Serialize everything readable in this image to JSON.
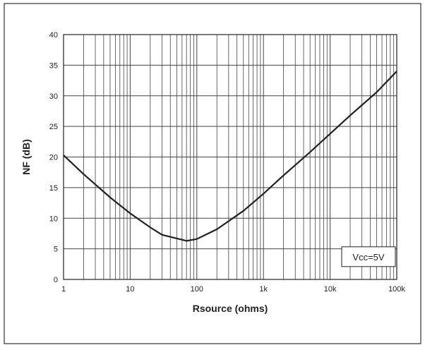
{
  "chart_data": {
    "type": "line",
    "title": "",
    "xlabel": "Rsource (ohms)",
    "ylabel": "NF (dB)",
    "x_scale": "log",
    "xlim": [
      1,
      100000
    ],
    "ylim": [
      0,
      40
    ],
    "grid": true,
    "x_tick_labels": [
      {
        "value": 1,
        "label": "1"
      },
      {
        "value": 10,
        "label": "10"
      },
      {
        "value": 100,
        "label": "100"
      },
      {
        "value": 1000,
        "label": "1k"
      },
      {
        "value": 10000,
        "label": "10k"
      },
      {
        "value": 100000,
        "label": "100k"
      }
    ],
    "y_tick_labels": [
      {
        "value": 0,
        "label": "0"
      },
      {
        "value": 5,
        "label": "5"
      },
      {
        "value": 10,
        "label": "10"
      },
      {
        "value": 15,
        "label": "15"
      },
      {
        "value": 20,
        "label": "20"
      },
      {
        "value": 25,
        "label": "25"
      },
      {
        "value": 30,
        "label": "30"
      },
      {
        "value": 35,
        "label": "35"
      },
      {
        "value": 40,
        "label": "40"
      }
    ],
    "series": [
      {
        "x": [
          1,
          2,
          5,
          10,
          20,
          30,
          50,
          70,
          100,
          200,
          500,
          1000,
          2000,
          5000,
          10000,
          20000,
          50000,
          100000
        ],
        "y": [
          20.3,
          17.2,
          13.4,
          10.8,
          8.5,
          7.3,
          6.7,
          6.3,
          6.6,
          8.2,
          11.2,
          14.0,
          17.0,
          20.8,
          23.8,
          26.8,
          30.6,
          34.0
        ]
      }
    ],
    "annotation": "Vcc=5V",
    "color": "#222222"
  }
}
